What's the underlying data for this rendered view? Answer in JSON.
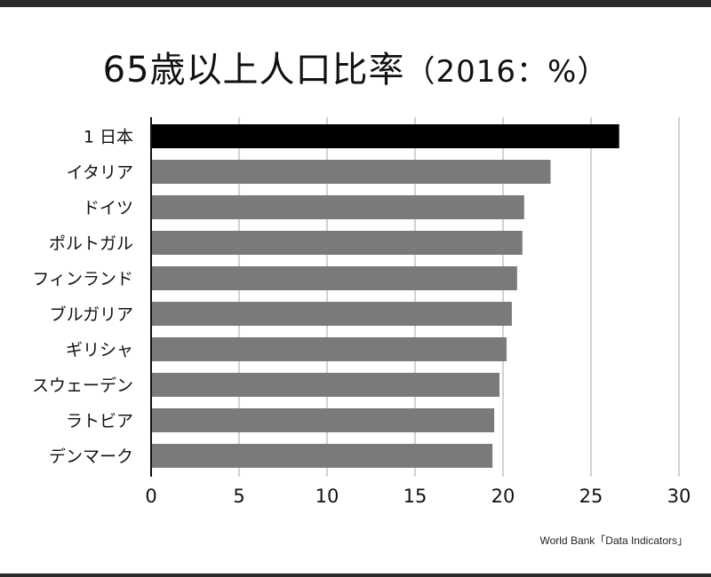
{
  "title": "65歳以上人口比率",
  "subtitle": "（2016：%）",
  "source": "World Bank「Data Indicators」",
  "colors": {
    "highlight": "#000000",
    "bar": "#7a7a7a",
    "grid": "#b5b5b5",
    "axis": "#111111"
  },
  "chart_data": {
    "type": "bar",
    "orientation": "horizontal",
    "title": "65歳以上人口比率",
    "subtitle": "（2016：%）",
    "categories": [
      "1 日本",
      "イタリア",
      "ドイツ",
      "ポルトガル",
      "フィンランド",
      "ブルガリア",
      "ギリシャ",
      "スウェーデン",
      "ラトビア",
      "デンマーク"
    ],
    "values": [
      26.6,
      22.7,
      21.2,
      21.1,
      20.8,
      20.5,
      20.2,
      19.8,
      19.5,
      19.4
    ],
    "xlim": [
      0,
      30
    ],
    "xticks": [
      0,
      5,
      10,
      15,
      20,
      25,
      30
    ],
    "grid": true,
    "highlight_index": 0
  }
}
